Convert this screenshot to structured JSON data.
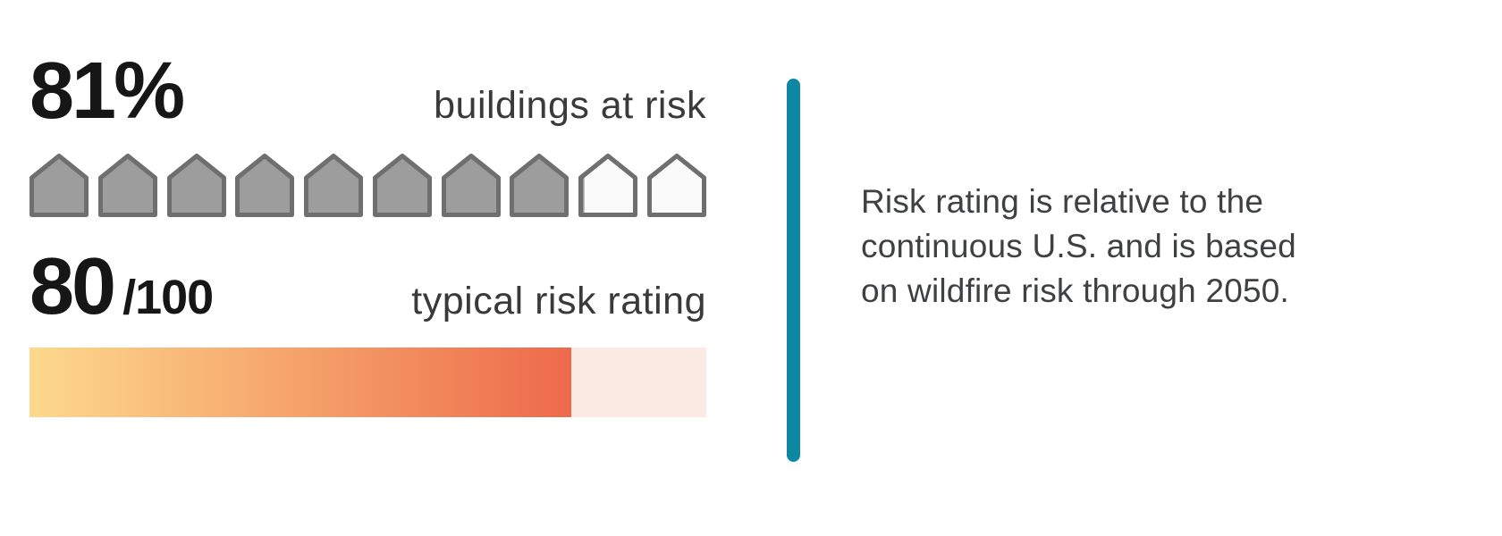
{
  "stats": {
    "buildings_at_risk": {
      "value": "81%",
      "label": "buildings at risk"
    },
    "risk_rating": {
      "value": "80",
      "denominator": "/100",
      "label": "typical risk rating"
    }
  },
  "description": {
    "lines": [
      "Risk rating is relative to the",
      "continuous U.S. and is based",
      "on wildfire risk through 2050."
    ]
  },
  "colors": {
    "accent_teal": "#0e87a3",
    "house_fill": "#9d9d9d",
    "house_stroke": "#6f6f6f",
    "house_empty_fill": "#fafafa",
    "bar_gradient_start": "#fcd98d",
    "bar_gradient_mid": "#f5a26a",
    "bar_gradient_end": "#ed6a4b",
    "bar_unfilled": "#fbe9e3",
    "text_primary": "#161616",
    "text_secondary": "#3a3a3a"
  },
  "chart_data": [
    {
      "type": "pictogram",
      "icon": "house",
      "title": "buildings at risk",
      "value_label": "81%",
      "percent": 81,
      "icons_total": 10,
      "icons_filled": 8,
      "icons_partial_fraction": 0.1
    },
    {
      "type": "progress-bar",
      "title": "typical risk rating",
      "value": 80,
      "max": 100,
      "fill_percent": 80
    }
  ]
}
